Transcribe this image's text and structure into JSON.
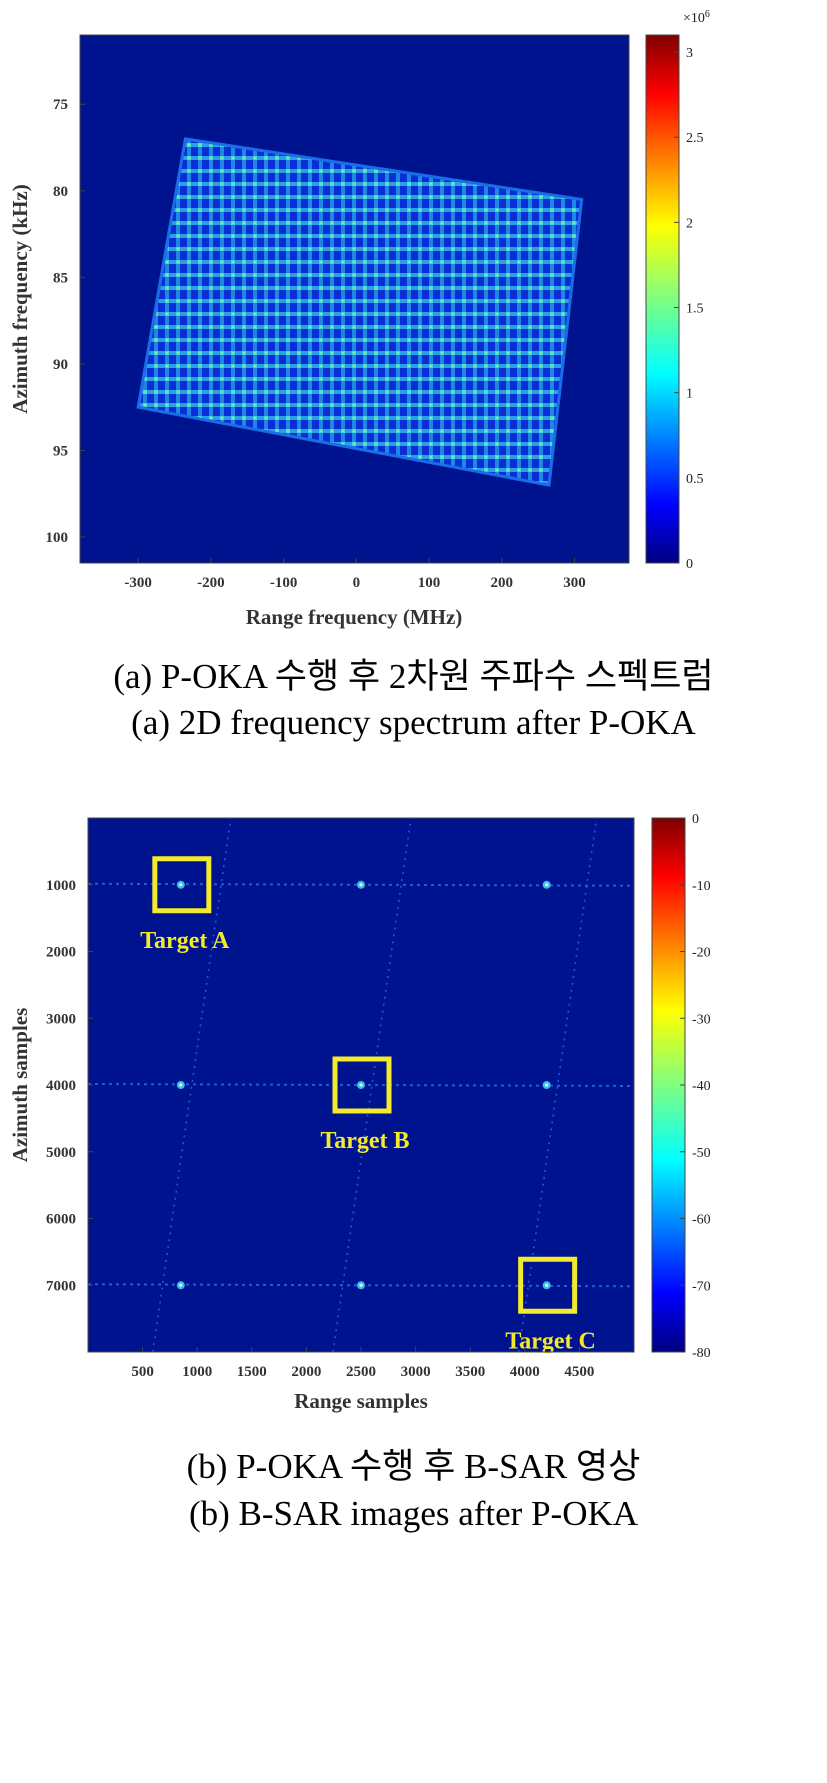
{
  "chart_data": [
    {
      "type": "heatmap",
      "xlabel": "Range frequency (MHz)",
      "ylabel": "Azimuth frequency (kHz)",
      "xlim": [
        -380,
        375
      ],
      "ylim": [
        71,
        101.5
      ],
      "y_reversed": true,
      "xticks": [
        -300,
        -200,
        -100,
        0,
        100,
        200,
        300
      ],
      "yticks": [
        75,
        80,
        85,
        90,
        95,
        100
      ],
      "support_region_corners": [
        [
          -235,
          77
        ],
        [
          310,
          80.5
        ],
        [
          265,
          97
        ],
        [
          -300,
          92.5
        ]
      ],
      "colorbar": {
        "colormap": "jet",
        "range": [
          0,
          3.1
        ],
        "ticks": [
          0,
          0.5,
          1,
          1.5,
          2,
          2.5,
          3
        ],
        "exponent_label": "×10^6"
      },
      "caption_kr": "(a) P-OKA 수행 후 2차원 주파수 스펙트럼",
      "caption_en": "(a) 2D frequency spectrum after P-OKA"
    },
    {
      "type": "heatmap",
      "xlabel": "Range samples",
      "ylabel": "Azimuth samples",
      "xlim": [
        0,
        5000
      ],
      "ylim": [
        0,
        8000
      ],
      "y_reversed": true,
      "xticks": [
        500,
        1000,
        1500,
        2000,
        2500,
        3000,
        3500,
        4000,
        4500
      ],
      "yticks": [
        1000,
        2000,
        3000,
        4000,
        5000,
        6000,
        7000
      ],
      "point_targets": [
        {
          "x": 850,
          "y": 1000
        },
        {
          "x": 2500,
          "y": 1000
        },
        {
          "x": 4200,
          "y": 1000
        },
        {
          "x": 850,
          "y": 4000
        },
        {
          "x": 2500,
          "y": 4000
        },
        {
          "x": 4200,
          "y": 4000
        },
        {
          "x": 850,
          "y": 7000
        },
        {
          "x": 2500,
          "y": 7000
        },
        {
          "x": 4200,
          "y": 7000
        }
      ],
      "highlighted_targets": [
        {
          "label": "Target A",
          "x": 850,
          "y": 1000
        },
        {
          "label": "Target B",
          "x": 2500,
          "y": 4000
        },
        {
          "label": "Target C",
          "x": 4200,
          "y": 7000
        }
      ],
      "colorbar": {
        "colormap": "jet",
        "range": [
          -80,
          0
        ],
        "ticks": [
          0,
          -10,
          -20,
          -30,
          -40,
          -50,
          -60,
          -70,
          -80
        ]
      },
      "caption_kr": "(b) P-OKA 수행 후 B-SAR 영상",
      "caption_en": "(b) B-SAR images after P-OKA"
    }
  ],
  "colors": {
    "background_dark_blue": "#00138f",
    "target_box": "#f2ea2a"
  }
}
